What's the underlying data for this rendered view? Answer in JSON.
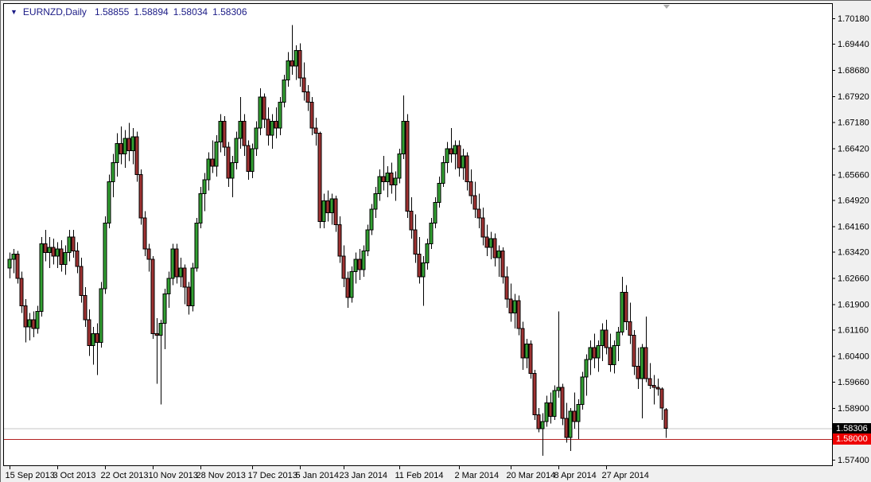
{
  "header": {
    "dropdown_icon": "▼",
    "symbol": "EURNZD,Daily",
    "open": "1.58855",
    "high": "1.58894",
    "low": "1.58034",
    "close": "1.58306"
  },
  "price_axis": {
    "labels": [
      "1.70180",
      "1.69440",
      "1.68680",
      "1.67920",
      "1.67180",
      "1.66420",
      "1.65660",
      "1.64920",
      "1.64160",
      "1.63420",
      "1.62660",
      "1.61900",
      "1.61160",
      "1.60400",
      "1.59660",
      "1.58900",
      "1.58140",
      "1.57400"
    ],
    "bid_badge": {
      "text": "1.58306",
      "bg": "#000000",
      "fg": "#ffffff"
    },
    "line_badge": {
      "text": "1.58000",
      "bg": "#ee0000",
      "fg": "#ffffff"
    }
  },
  "time_axis": {
    "labels": [
      {
        "text": "15 Sep 2013",
        "index": 0
      },
      {
        "text": "3 Oct 2013",
        "index": 12
      },
      {
        "text": "22 Oct 2013",
        "index": 24
      },
      {
        "text": "10 Nov 2013",
        "index": 36
      },
      {
        "text": "28 Nov 2013",
        "index": 48
      },
      {
        "text": "17 Dec 2013",
        "index": 61
      },
      {
        "text": "5 Jan 2014",
        "index": 73
      },
      {
        "text": "23 Jan 2014",
        "index": 84
      },
      {
        "text": "11 Feb 2014",
        "index": 98
      },
      {
        "text": "2 Mar 2014",
        "index": 113
      },
      {
        "text": "20 Mar 2014",
        "index": 126
      },
      {
        "text": "8 Apr 2014",
        "index": 138
      },
      {
        "text": "27 Apr 2014",
        "index": 150
      }
    ]
  },
  "chart_data": {
    "type": "candlestick",
    "symbol": "EURNZD",
    "timeframe": "Daily",
    "title": "EURNZD,Daily",
    "current_bar": {
      "open": 1.58855,
      "high": 1.58894,
      "low": 1.58034,
      "close": 1.58306
    },
    "y_range": [
      1.57239,
      1.70617
    ],
    "grid": false,
    "up_color": "#32a032",
    "down_color": "#9e3232",
    "wick_color": "#000000",
    "plot_bg": "#ffffff",
    "outer_bg": "#f0f0f0",
    "shift_marker_color": "#ababab",
    "hlines": [
      {
        "name": "bid-price-line",
        "price": 1.58306,
        "color": "#c6c6c6"
      },
      {
        "name": "support-line",
        "price": 1.58,
        "color": "#b22222"
      }
    ],
    "candles": [
      [
        1.6295,
        1.634,
        1.6265,
        1.632
      ],
      [
        1.632,
        1.635,
        1.628,
        1.6335
      ],
      [
        1.6335,
        1.6345,
        1.625,
        1.6265
      ],
      [
        1.6265,
        1.6285,
        1.6165,
        1.6185
      ],
      [
        1.6185,
        1.6205,
        1.608,
        1.6125
      ],
      [
        1.6125,
        1.6165,
        1.6085,
        1.6145
      ],
      [
        1.6145,
        1.617,
        1.6095,
        1.612
      ],
      [
        1.612,
        1.6185,
        1.6105,
        1.617
      ],
      [
        1.617,
        1.6385,
        1.6155,
        1.6365
      ],
      [
        1.6365,
        1.6405,
        1.6315,
        1.634
      ],
      [
        1.634,
        1.6385,
        1.6295,
        1.6355
      ],
      [
        1.6355,
        1.638,
        1.6305,
        1.633
      ],
      [
        1.633,
        1.637,
        1.6295,
        1.635
      ],
      [
        1.635,
        1.6375,
        1.6285,
        1.6305
      ],
      [
        1.6305,
        1.636,
        1.6275,
        1.634
      ],
      [
        1.634,
        1.6405,
        1.6315,
        1.6385
      ],
      [
        1.6385,
        1.6405,
        1.6325,
        1.6345
      ],
      [
        1.6345,
        1.637,
        1.628,
        1.63
      ],
      [
        1.63,
        1.6325,
        1.6195,
        1.6215
      ],
      [
        1.6215,
        1.624,
        1.6125,
        1.6145
      ],
      [
        1.6145,
        1.6175,
        1.604,
        1.607
      ],
      [
        1.607,
        1.6125,
        1.6015,
        1.6105
      ],
      [
        1.6105,
        1.6135,
        1.5985,
        1.608
      ],
      [
        1.608,
        1.6255,
        1.6065,
        1.6235
      ],
      [
        1.6235,
        1.6445,
        1.622,
        1.6425
      ],
      [
        1.6425,
        1.6565,
        1.641,
        1.6545
      ],
      [
        1.6545,
        1.6625,
        1.65,
        1.66
      ],
      [
        1.66,
        1.6685,
        1.656,
        1.6655
      ],
      [
        1.6655,
        1.6705,
        1.6595,
        1.6625
      ],
      [
        1.6625,
        1.6695,
        1.6585,
        1.667
      ],
      [
        1.667,
        1.6715,
        1.6605,
        1.6635
      ],
      [
        1.6635,
        1.67,
        1.6595,
        1.6675
      ],
      [
        1.6675,
        1.669,
        1.6545,
        1.6565
      ],
      [
        1.6565,
        1.658,
        1.642,
        1.644
      ],
      [
        1.644,
        1.646,
        1.633,
        1.635
      ],
      [
        1.635,
        1.6365,
        1.6285,
        1.632
      ],
      [
        1.632,
        1.633,
        1.609,
        1.6105
      ],
      [
        1.6105,
        1.615,
        1.596,
        1.61
      ],
      [
        1.61,
        1.6145,
        1.59,
        1.6135
      ],
      [
        1.6135,
        1.6235,
        1.606,
        1.622
      ],
      [
        1.622,
        1.6285,
        1.618,
        1.6265
      ],
      [
        1.6265,
        1.6365,
        1.6245,
        1.635
      ],
      [
        1.635,
        1.6365,
        1.625,
        1.627
      ],
      [
        1.627,
        1.6325,
        1.624,
        1.6295
      ],
      [
        1.6295,
        1.6305,
        1.619,
        1.624
      ],
      [
        1.624,
        1.6255,
        1.616,
        1.6185
      ],
      [
        1.6185,
        1.631,
        1.617,
        1.6295
      ],
      [
        1.6295,
        1.644,
        1.6285,
        1.6425
      ],
      [
        1.6425,
        1.653,
        1.641,
        1.651
      ],
      [
        1.651,
        1.657,
        1.646,
        1.655
      ],
      [
        1.655,
        1.663,
        1.652,
        1.661
      ],
      [
        1.661,
        1.6665,
        1.657,
        1.659
      ],
      [
        1.659,
        1.668,
        1.656,
        1.666
      ],
      [
        1.666,
        1.674,
        1.663,
        1.672
      ],
      [
        1.672,
        1.6735,
        1.662,
        1.6645
      ],
      [
        1.6645,
        1.666,
        1.653,
        1.6555
      ],
      [
        1.6555,
        1.662,
        1.65,
        1.66
      ],
      [
        1.66,
        1.669,
        1.658,
        1.667
      ],
      [
        1.667,
        1.679,
        1.664,
        1.672
      ],
      [
        1.672,
        1.674,
        1.662,
        1.665
      ],
      [
        1.665,
        1.6665,
        1.655,
        1.6575
      ],
      [
        1.6575,
        1.6655,
        1.6555,
        1.664
      ],
      [
        1.664,
        1.672,
        1.662,
        1.67
      ],
      [
        1.67,
        1.6815,
        1.668,
        1.679
      ],
      [
        1.679,
        1.68,
        1.67,
        1.6725
      ],
      [
        1.6725,
        1.676,
        1.665,
        1.668
      ],
      [
        1.668,
        1.674,
        1.664,
        1.672
      ],
      [
        1.672,
        1.676,
        1.667,
        1.67
      ],
      [
        1.67,
        1.679,
        1.668,
        1.6775
      ],
      [
        1.6775,
        1.6855,
        1.676,
        1.684
      ],
      [
        1.684,
        1.692,
        1.682,
        1.6895
      ],
      [
        1.6895,
        1.6998,
        1.6855,
        1.688
      ],
      [
        1.688,
        1.694,
        1.684,
        1.6925
      ],
      [
        1.6925,
        1.6945,
        1.682,
        1.6845
      ],
      [
        1.6845,
        1.689,
        1.678,
        1.6805
      ],
      [
        1.6805,
        1.6825,
        1.675,
        1.6775
      ],
      [
        1.6775,
        1.679,
        1.668,
        1.67
      ],
      [
        1.67,
        1.673,
        1.665,
        1.6685
      ],
      [
        1.6685,
        1.669,
        1.641,
        1.643
      ],
      [
        1.643,
        1.651,
        1.641,
        1.649
      ],
      [
        1.649,
        1.652,
        1.643,
        1.6455
      ],
      [
        1.6455,
        1.651,
        1.642,
        1.6495
      ],
      [
        1.6495,
        1.6505,
        1.64,
        1.642
      ],
      [
        1.642,
        1.6445,
        1.631,
        1.633
      ],
      [
        1.633,
        1.636,
        1.624,
        1.6265
      ],
      [
        1.6265,
        1.6285,
        1.618,
        1.621
      ],
      [
        1.621,
        1.63,
        1.6195,
        1.6285
      ],
      [
        1.6285,
        1.634,
        1.625,
        1.632
      ],
      [
        1.632,
        1.635,
        1.626,
        1.629
      ],
      [
        1.629,
        1.636,
        1.627,
        1.6345
      ],
      [
        1.6345,
        1.642,
        1.633,
        1.6405
      ],
      [
        1.6405,
        1.648,
        1.639,
        1.6465
      ],
      [
        1.6465,
        1.653,
        1.644,
        1.651
      ],
      [
        1.651,
        1.658,
        1.649,
        1.656
      ],
      [
        1.656,
        1.662,
        1.652,
        1.6545
      ],
      [
        1.6545,
        1.659,
        1.65,
        1.657
      ],
      [
        1.657,
        1.66,
        1.651,
        1.6535
      ],
      [
        1.6535,
        1.6575,
        1.649,
        1.6555
      ],
      [
        1.6555,
        1.664,
        1.654,
        1.6625
      ],
      [
        1.6625,
        1.6795,
        1.661,
        1.672
      ],
      [
        1.672,
        1.674,
        1.644,
        1.646
      ],
      [
        1.646,
        1.65,
        1.638,
        1.6405
      ],
      [
        1.6405,
        1.645,
        1.631,
        1.6335
      ],
      [
        1.6335,
        1.6385,
        1.625,
        1.627
      ],
      [
        1.627,
        1.633,
        1.6185,
        1.631
      ],
      [
        1.631,
        1.638,
        1.629,
        1.6365
      ],
      [
        1.6365,
        1.644,
        1.635,
        1.6425
      ],
      [
        1.6425,
        1.65,
        1.641,
        1.6485
      ],
      [
        1.6485,
        1.656,
        1.647,
        1.654
      ],
      [
        1.654,
        1.662,
        1.653,
        1.66
      ],
      [
        1.66,
        1.666,
        1.657,
        1.664
      ],
      [
        1.664,
        1.67,
        1.66,
        1.6625
      ],
      [
        1.6625,
        1.6665,
        1.658,
        1.665
      ],
      [
        1.665,
        1.6665,
        1.656,
        1.6585
      ],
      [
        1.6585,
        1.664,
        1.655,
        1.662
      ],
      [
        1.662,
        1.663,
        1.652,
        1.6545
      ],
      [
        1.6545,
        1.658,
        1.648,
        1.6505
      ],
      [
        1.6505,
        1.6545,
        1.644,
        1.6465
      ],
      [
        1.6465,
        1.651,
        1.641,
        1.644
      ],
      [
        1.644,
        1.647,
        1.636,
        1.6385
      ],
      [
        1.6385,
        1.642,
        1.633,
        1.6355
      ],
      [
        1.6355,
        1.64,
        1.632,
        1.638
      ],
      [
        1.638,
        1.6395,
        1.63,
        1.6325
      ],
      [
        1.6325,
        1.636,
        1.627,
        1.6345
      ],
      [
        1.6345,
        1.6355,
        1.625,
        1.627
      ],
      [
        1.627,
        1.63,
        1.618,
        1.6205
      ],
      [
        1.6205,
        1.625,
        1.614,
        1.6165
      ],
      [
        1.6165,
        1.622,
        1.612,
        1.62
      ],
      [
        1.62,
        1.6215,
        1.61,
        1.612
      ],
      [
        1.612,
        1.614,
        1.6,
        1.6035
      ],
      [
        1.6035,
        1.609,
        1.6005,
        1.6075
      ],
      [
        1.6075,
        1.6085,
        1.5975,
        1.599
      ],
      [
        1.599,
        1.6,
        1.5855,
        1.587
      ],
      [
        1.587,
        1.589,
        1.582,
        1.583
      ],
      [
        1.583,
        1.5875,
        1.5752,
        1.585
      ],
      [
        1.585,
        1.5925,
        1.5835,
        1.5905
      ],
      [
        1.5905,
        1.5935,
        1.5845,
        1.5865
      ],
      [
        1.5865,
        1.5955,
        1.5855,
        1.594
      ],
      [
        1.594,
        1.617,
        1.592,
        1.595
      ],
      [
        1.595,
        1.596,
        1.584,
        1.586
      ],
      [
        1.586,
        1.5905,
        1.579,
        1.5805
      ],
      [
        1.5805,
        1.589,
        1.5765,
        1.588
      ],
      [
        1.588,
        1.5935,
        1.583,
        1.585
      ],
      [
        1.585,
        1.5915,
        1.58,
        1.59
      ],
      [
        1.59,
        1.5995,
        1.5885,
        1.598
      ],
      [
        1.598,
        1.6045,
        1.5925,
        1.603
      ],
      [
        1.603,
        1.6085,
        1.5985,
        1.6065
      ],
      [
        1.6065,
        1.6105,
        1.6005,
        1.6035
      ],
      [
        1.6035,
        1.6085,
        1.5995,
        1.607
      ],
      [
        1.607,
        1.6135,
        1.6025,
        1.6115
      ],
      [
        1.6115,
        1.6145,
        1.6045,
        1.6065
      ],
      [
        1.6065,
        1.6105,
        1.5995,
        1.6015
      ],
      [
        1.6015,
        1.6085,
        1.599,
        1.607
      ],
      [
        1.607,
        1.6125,
        1.6025,
        1.611
      ],
      [
        1.611,
        1.627,
        1.61,
        1.6225
      ],
      [
        1.6225,
        1.6245,
        1.6115,
        1.614
      ],
      [
        1.614,
        1.6195,
        1.6075,
        1.61
      ],
      [
        1.61,
        1.6115,
        1.5985,
        1.601
      ],
      [
        1.601,
        1.6065,
        1.5945,
        1.5975
      ],
      [
        1.5975,
        1.6075,
        1.586,
        1.6065
      ],
      [
        1.6065,
        1.6155,
        1.5965,
        1.5975
      ],
      [
        1.5975,
        1.602,
        1.5945,
        1.5955
      ],
      [
        1.5955,
        1.5985,
        1.59,
        1.595
      ],
      [
        1.595,
        1.5975,
        1.5925,
        1.5945
      ],
      [
        1.5945,
        1.595,
        1.5855,
        1.589
      ],
      [
        1.58855,
        1.58894,
        1.58034,
        1.58306
      ]
    ]
  }
}
